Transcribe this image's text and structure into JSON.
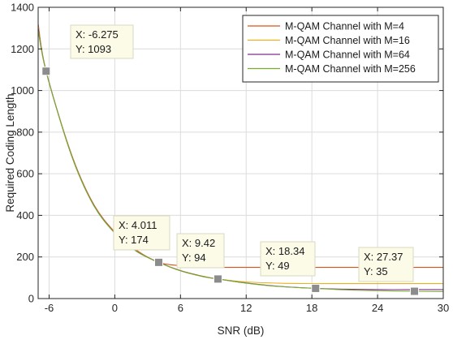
{
  "chart_data": {
    "type": "line",
    "xlabel": "SNR (dB)",
    "ylabel": "Required Coding Length",
    "xlim": [
      -7,
      30
    ],
    "ylim": [
      0,
      1400
    ],
    "xticks": [
      -6,
      0,
      6,
      12,
      18,
      24,
      30
    ],
    "yticks": [
      0,
      200,
      400,
      600,
      800,
      1000,
      1200,
      1400
    ],
    "grid": true,
    "legend_position": "top-right",
    "series": [
      {
        "name": "M-QAM Channel with M=4",
        "color": "#d95319",
        "x": [
          -7,
          -6.275,
          -4,
          -2,
          0,
          2,
          4.011,
          6,
          8,
          9.42,
          12,
          15,
          18.34,
          21,
          24,
          27.37,
          30
        ],
        "y": [
          1320,
          1093,
          700,
          460,
          320,
          232,
          174,
          158,
          152,
          150,
          150,
          150,
          150,
          150,
          150,
          150,
          150
        ]
      },
      {
        "name": "M-QAM Channel with M=16",
        "color": "#edb120",
        "x": [
          -7,
          -6.275,
          -4,
          -2,
          0,
          2,
          4.011,
          6,
          8,
          9.42,
          12,
          15,
          18.34,
          21,
          24,
          27.37,
          30
        ],
        "y": [
          1310,
          1093,
          698,
          458,
          318,
          230,
          174,
          135,
          108,
          94,
          80,
          74,
          72,
          72,
          72,
          72,
          72
        ]
      },
      {
        "name": "M-QAM Channel with M=64",
        "color": "#7e2f8e",
        "x": [
          -7,
          -6.275,
          -4,
          -2,
          0,
          2,
          4.011,
          6,
          8,
          9.42,
          12,
          15,
          18.34,
          21,
          24,
          27.37,
          30
        ],
        "y": [
          1300,
          1093,
          696,
          456,
          316,
          228,
          174,
          134,
          107,
          94,
          75,
          59,
          49,
          45,
          43,
          43,
          43
        ]
      },
      {
        "name": "M-QAM Channel with M=256",
        "color": "#77ac30",
        "x": [
          -7,
          -6.275,
          -4,
          -2,
          0,
          2,
          4.011,
          6,
          8,
          9.42,
          12,
          15,
          18.34,
          21,
          24,
          27.37,
          30
        ],
        "y": [
          1290,
          1093,
          694,
          454,
          314,
          226,
          174,
          133,
          106,
          94,
          74,
          58,
          49,
          42,
          38,
          35,
          34
        ]
      }
    ],
    "datatips": [
      {
        "x": -6.275,
        "y": 1093,
        "x_text": "X: -6.275",
        "y_text": "Y: 1093"
      },
      {
        "x": 4.011,
        "y": 174,
        "x_text": "X: 4.011",
        "y_text": "Y: 174"
      },
      {
        "x": 9.42,
        "y": 94,
        "x_text": "X: 9.42",
        "y_text": "Y: 94"
      },
      {
        "x": 18.34,
        "y": 49,
        "x_text": "X: 18.34",
        "y_text": "Y: 49"
      },
      {
        "x": 27.37,
        "y": 35,
        "x_text": "X: 27.37",
        "y_text": "Y: 35"
      }
    ]
  }
}
